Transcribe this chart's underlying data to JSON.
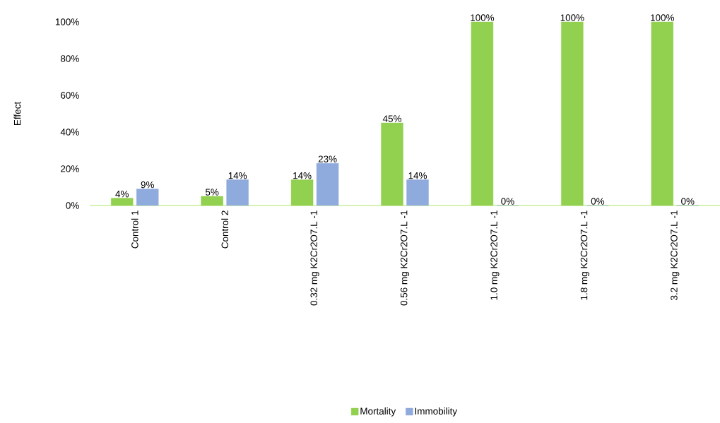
{
  "chart_data": {
    "type": "bar",
    "ylabel": "Effect",
    "categories": [
      "Control 1",
      "Control 2",
      "0.32 mg K2Cr2O7.L -1",
      "0.56 mg K2Cr2O7.L -1",
      "1.0 mg K2Cr2O7.L -1",
      "1.8 mg K2Cr2O7.L -1",
      "3.2 mg K2Cr2O7.L -1"
    ],
    "series": [
      {
        "name": "Mortality",
        "color": "#92d050",
        "values": [
          4,
          5,
          14,
          45,
          100,
          100,
          100
        ],
        "value_labels": [
          "4%",
          "5%",
          "14%",
          "45%",
          "100%",
          "100%",
          "100%"
        ]
      },
      {
        "name": "Immobility",
        "color": "#8faadc",
        "values": [
          9,
          14,
          23,
          14,
          0,
          0,
          0
        ],
        "value_labels": [
          "9%",
          "14%",
          "23%",
          "14%",
          "0%",
          "0%",
          "0%"
        ]
      }
    ],
    "ylim": [
      0,
      100
    ],
    "yticks": [
      {
        "value": 0,
        "label": "0%"
      },
      {
        "value": 20,
        "label": "20%"
      },
      {
        "value": 40,
        "label": "40%"
      },
      {
        "value": 60,
        "label": "60%"
      },
      {
        "value": 80,
        "label": "80%"
      },
      {
        "value": 100,
        "label": "100%"
      }
    ],
    "legend": "bottom"
  }
}
